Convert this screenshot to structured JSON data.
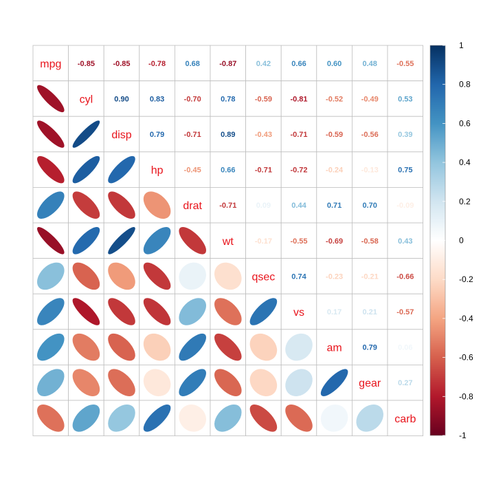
{
  "chart_data": {
    "type": "heatmap",
    "variables": [
      "mpg",
      "cyl",
      "disp",
      "hp",
      "drat",
      "wt",
      "qsec",
      "vs",
      "am",
      "gear",
      "carb"
    ],
    "matrix": [
      [
        1.0,
        -0.85,
        -0.85,
        -0.78,
        0.68,
        -0.87,
        0.42,
        0.66,
        0.6,
        0.48,
        -0.55
      ],
      [
        -0.85,
        1.0,
        0.9,
        0.83,
        -0.7,
        0.78,
        -0.59,
        -0.81,
        -0.52,
        -0.49,
        0.53
      ],
      [
        -0.85,
        0.9,
        1.0,
        0.79,
        -0.71,
        0.89,
        -0.43,
        -0.71,
        -0.59,
        -0.56,
        0.39
      ],
      [
        -0.78,
        0.83,
        0.79,
        1.0,
        -0.45,
        0.66,
        -0.71,
        -0.72,
        -0.24,
        -0.13,
        0.75
      ],
      [
        0.68,
        -0.7,
        -0.71,
        -0.45,
        1.0,
        -0.71,
        0.09,
        0.44,
        0.71,
        0.7,
        -0.09
      ],
      [
        -0.87,
        0.78,
        0.89,
        0.66,
        -0.71,
        1.0,
        -0.17,
        -0.55,
        -0.69,
        -0.58,
        0.43
      ],
      [
        0.42,
        -0.59,
        -0.43,
        -0.71,
        0.09,
        -0.17,
        1.0,
        0.74,
        -0.23,
        -0.21,
        -0.66
      ],
      [
        0.66,
        -0.81,
        -0.71,
        -0.72,
        0.44,
        -0.55,
        0.74,
        1.0,
        0.17,
        0.21,
        -0.57
      ],
      [
        0.6,
        -0.52,
        -0.59,
        -0.24,
        0.71,
        -0.69,
        -0.23,
        0.17,
        1.0,
        0.79,
        0.06
      ],
      [
        0.48,
        -0.49,
        -0.56,
        -0.13,
        0.7,
        -0.58,
        -0.21,
        0.21,
        0.79,
        1.0,
        0.27
      ],
      [
        -0.55,
        0.53,
        0.39,
        0.75,
        -0.09,
        0.43,
        -0.66,
        -0.57,
        0.06,
        0.27,
        1.0
      ]
    ],
    "upper_method": "number",
    "lower_method": "ellipse",
    "diagonal": "variable names",
    "label_color": "#e8141c",
    "colorbar": {
      "range": [
        -1,
        1
      ],
      "ticks": [
        "1",
        "0.8",
        "0.6",
        "0.4",
        "0.2",
        "0",
        "-0.2",
        "-0.4",
        "-0.6",
        "-0.8",
        "-1"
      ],
      "placement": "right"
    },
    "palette": [
      "#67001f",
      "#b2182b",
      "#d6604d",
      "#f4a582",
      "#fddbc7",
      "#ffffff",
      "#d1e5f0",
      "#92c5de",
      "#4393c3",
      "#2166ac",
      "#053061"
    ],
    "grid_color": "#bebebe"
  }
}
